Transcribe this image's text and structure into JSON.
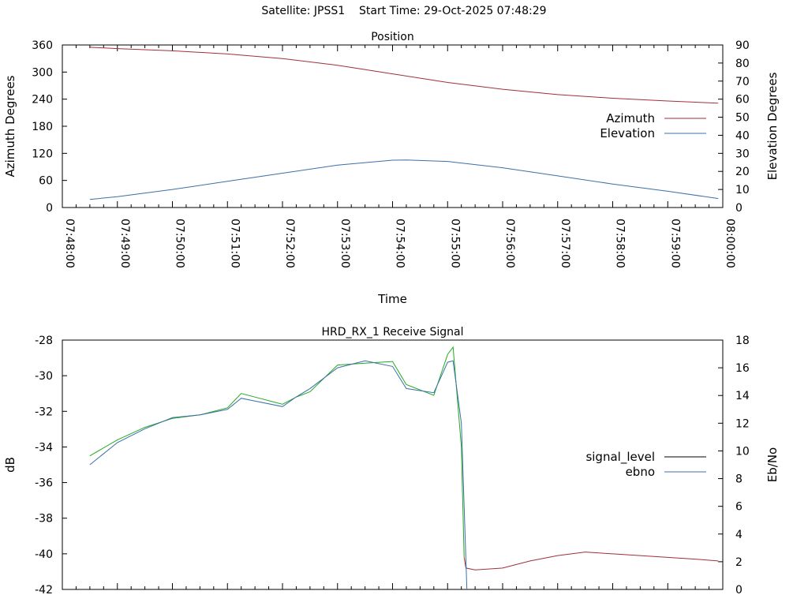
{
  "header": {
    "satellite_label": "Satellite: JPSS1",
    "start_time_label": "Start Time: 29-Oct-2025 07:48:29"
  },
  "chart_data": [
    {
      "type": "line",
      "title": "Position",
      "xlabel": "Time",
      "ylabel": "Azimuth Degrees",
      "y2label": "Elevation Degrees",
      "xlim": [
        "07:48:00",
        "08:00:00"
      ],
      "xticks": [
        "07:48:00",
        "07:49:00",
        "07:50:00",
        "07:51:00",
        "07:52:00",
        "07:53:00",
        "07:54:00",
        "07:55:00",
        "07:56:00",
        "07:57:00",
        "07:58:00",
        "07:59:00",
        "08:00:00"
      ],
      "ylim": [
        0,
        360
      ],
      "yticks": [
        0,
        60,
        120,
        180,
        240,
        300,
        360
      ],
      "y2lim": [
        0,
        90
      ],
      "y2ticks": [
        0,
        10,
        20,
        30,
        40,
        50,
        60,
        70,
        80,
        90
      ],
      "legend_position": "right",
      "series": [
        {
          "name": "Azimuth",
          "axis": "left",
          "color": "#a0303a",
          "x": [
            "07:48:30",
            "07:49:00",
            "07:50:00",
            "07:51:00",
            "07:52:00",
            "07:53:00",
            "07:54:00",
            "07:55:00",
            "07:56:00",
            "07:57:00",
            "07:58:00",
            "07:59:00",
            "07:59:55"
          ],
          "values": [
            355,
            352,
            347,
            340,
            330,
            315,
            296,
            277,
            262,
            250,
            242,
            236,
            231
          ]
        },
        {
          "name": "Elevation",
          "axis": "right",
          "color": "#3a70a8",
          "x": [
            "07:48:30",
            "07:49:00",
            "07:50:00",
            "07:51:00",
            "07:52:00",
            "07:53:00",
            "07:54:00",
            "07:54:15",
            "07:55:00",
            "07:56:00",
            "07:57:00",
            "07:58:00",
            "07:59:00",
            "07:59:55"
          ],
          "values": [
            4.5,
            6,
            10,
            14.5,
            19,
            23.5,
            26.2,
            26.3,
            25.5,
            22,
            17.5,
            13,
            9,
            5
          ]
        }
      ]
    },
    {
      "type": "line",
      "title": "HRD_RX_1 Receive Signal",
      "ylabel": "dB",
      "y2label": "Eb/No",
      "xlim": [
        "07:48:00",
        "08:00:00"
      ],
      "ylim": [
        -42,
        -28
      ],
      "yticks": [
        -42,
        -40,
        -38,
        -36,
        -34,
        -32,
        -30,
        -28
      ],
      "y2lim": [
        0,
        18
      ],
      "y2ticks": [
        0,
        2,
        4,
        6,
        8,
        10,
        12,
        14,
        16,
        18
      ],
      "legend_position": "right",
      "legend": [
        {
          "name": "signal_level",
          "color": "#000000"
        },
        {
          "name": "ebno",
          "color": "#3a70a8"
        }
      ],
      "series": [
        {
          "name": "signal_level",
          "axis": "left",
          "segments": [
            {
              "color": "#22aa22",
              "x": [
                "07:48:30",
                "07:49:00",
                "07:49:30",
                "07:50:00",
                "07:50:30",
                "07:51:00",
                "07:51:15",
                "07:51:30",
                "07:52:00",
                "07:52:15",
                "07:52:30",
                "07:53:00",
                "07:53:30",
                "07:54:00",
                "07:54:15",
                "07:54:45",
                "07:55:00",
                "07:55:06",
                "07:55:15",
                "07:55:18"
              ],
              "values": [
                -34.5,
                -33.6,
                -32.9,
                -32.4,
                -32.2,
                -31.8,
                -31.0,
                -31.2,
                -31.6,
                -31.2,
                -30.9,
                -29.4,
                -29.3,
                -29.2,
                -30.5,
                -31.1,
                -28.8,
                -28.4,
                -34.0,
                -40.2
              ]
            },
            {
              "color": "#a0303a",
              "x": [
                "07:55:18",
                "07:55:20",
                "07:55:30",
                "07:56:00",
                "07:56:30",
                "07:57:00",
                "07:57:30",
                "07:58:00",
                "07:58:30",
                "07:59:00",
                "07:59:30",
                "07:59:55"
              ],
              "values": [
                -40.2,
                -40.8,
                -40.9,
                -40.8,
                -40.4,
                -40.1,
                -39.9,
                -40.0,
                -40.1,
                -40.2,
                -40.3,
                -40.4
              ]
            }
          ]
        },
        {
          "name": "ebno",
          "axis": "right",
          "color": "#3a70a8",
          "x": [
            "07:48:30",
            "07:49:00",
            "07:49:30",
            "07:50:00",
            "07:50:30",
            "07:51:00",
            "07:51:15",
            "07:51:30",
            "07:52:00",
            "07:52:15",
            "07:52:30",
            "07:53:00",
            "07:53:30",
            "07:54:00",
            "07:54:15",
            "07:54:45",
            "07:55:00",
            "07:55:06",
            "07:55:15",
            "07:55:21"
          ],
          "values": [
            9.0,
            10.6,
            11.6,
            12.4,
            12.6,
            13.0,
            13.8,
            13.6,
            13.2,
            13.9,
            14.5,
            16.0,
            16.5,
            16.1,
            14.5,
            14.2,
            16.4,
            16.5,
            12.0,
            0.0
          ]
        }
      ]
    }
  ]
}
